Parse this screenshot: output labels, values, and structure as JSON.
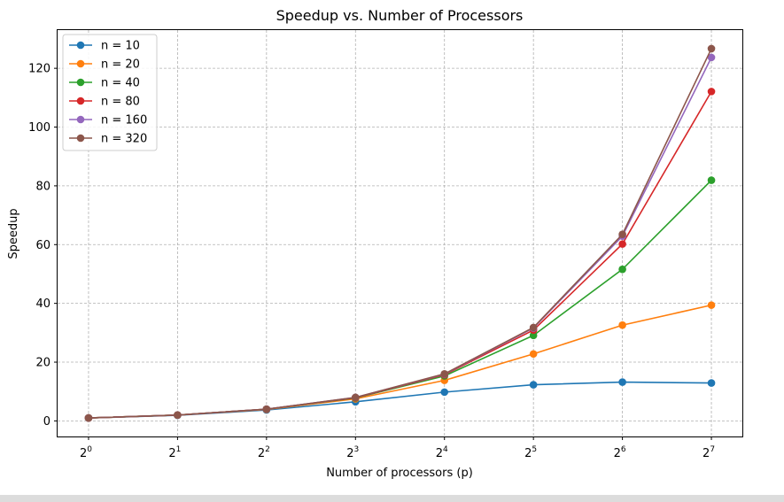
{
  "chart_data": {
    "type": "line",
    "title": "Speedup vs. Number of Processors",
    "xlabel": "Number of processors (p)",
    "ylabel": "Speedup",
    "x_scale": "log2",
    "x": [
      1,
      2,
      4,
      8,
      16,
      32,
      64,
      128
    ],
    "x_tick_base": "2",
    "x_tick_exponents": [
      "0",
      "1",
      "2",
      "3",
      "4",
      "5",
      "6",
      "7"
    ],
    "y_ticks": [
      "0",
      "20",
      "40",
      "60",
      "80",
      "100",
      "120"
    ],
    "ylim": [
      -5.3,
      133
    ],
    "grid": true,
    "legend_position": "top-left",
    "series": [
      {
        "name": "n = 10",
        "color": "#1f77b4",
        "values": [
          1.0,
          1.9,
          3.7,
          6.5,
          9.8,
          12.3,
          13.2,
          12.9
        ]
      },
      {
        "name": "n = 20",
        "color": "#ff7f0e",
        "values": [
          1.0,
          2.0,
          3.9,
          7.5,
          13.8,
          22.8,
          32.6,
          39.4
        ]
      },
      {
        "name": "n = 40",
        "color": "#2ca02c",
        "values": [
          1.0,
          2.0,
          4.0,
          7.8,
          15.3,
          29.1,
          51.6,
          81.9
        ]
      },
      {
        "name": "n = 80",
        "color": "#d62728",
        "values": [
          1.0,
          2.0,
          4.0,
          7.9,
          15.7,
          30.9,
          60.2,
          112.1
        ]
      },
      {
        "name": "n = 160",
        "color": "#9467bd",
        "values": [
          1.0,
          2.0,
          4.0,
          8.0,
          15.9,
          31.6,
          62.9,
          123.7
        ]
      },
      {
        "name": "n = 320",
        "color": "#8c564b",
        "values": [
          1.0,
          2.0,
          4.0,
          8.0,
          16.0,
          31.8,
          63.5,
          126.7
        ]
      }
    ]
  }
}
